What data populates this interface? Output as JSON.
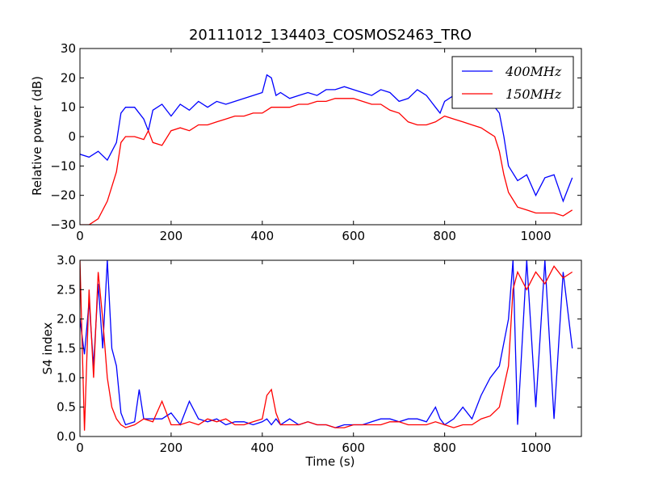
{
  "colors": {
    "series_400": "#0000ff",
    "series_150": "#ff0000"
  },
  "chart_data": [
    {
      "type": "line",
      "title": "20111012_134403_COSMOS2463_TRO",
      "xlabel": "",
      "ylabel": "Relative power (dB)",
      "xlim": [
        0,
        1100
      ],
      "ylim": [
        -30,
        30
      ],
      "xticks": [
        "0",
        "200",
        "400",
        "600",
        "800",
        "1000"
      ],
      "yticks": [
        "−30",
        "−20",
        "−10",
        "0",
        "10",
        "20",
        "30"
      ],
      "legend": {
        "position": "top-right",
        "entries": [
          "400MHz",
          "150MHz"
        ]
      },
      "series": [
        {
          "name": "400MHz",
          "color": "#0000ff",
          "x": [
            0,
            20,
            40,
            60,
            80,
            90,
            100,
            120,
            140,
            150,
            160,
            180,
            200,
            220,
            240,
            260,
            280,
            300,
            320,
            340,
            360,
            380,
            400,
            410,
            420,
            430,
            440,
            460,
            480,
            500,
            520,
            540,
            560,
            580,
            600,
            620,
            640,
            660,
            680,
            700,
            720,
            740,
            760,
            780,
            790,
            800,
            820,
            840,
            860,
            880,
            900,
            910,
            920,
            930,
            940,
            960,
            980,
            1000,
            1020,
            1040,
            1060,
            1080
          ],
          "y": [
            -6,
            -7,
            -5,
            -8,
            -2,
            8,
            10,
            10,
            6,
            2,
            9,
            11,
            7,
            11,
            9,
            12,
            10,
            12,
            11,
            12,
            13,
            14,
            15,
            21,
            20,
            14,
            15,
            13,
            14,
            15,
            14,
            16,
            16,
            17,
            16,
            15,
            14,
            16,
            15,
            12,
            13,
            16,
            14,
            10,
            8,
            12,
            14,
            13,
            12,
            13,
            13,
            10,
            8,
            0,
            -10,
            -15,
            -13,
            -20,
            -14,
            -13,
            -22,
            -14
          ]
        },
        {
          "name": "150MHz",
          "color": "#ff0000",
          "x": [
            0,
            20,
            40,
            60,
            80,
            90,
            100,
            120,
            140,
            150,
            160,
            180,
            200,
            220,
            240,
            260,
            280,
            300,
            320,
            340,
            360,
            380,
            400,
            410,
            420,
            430,
            440,
            460,
            480,
            500,
            520,
            540,
            560,
            580,
            600,
            620,
            640,
            660,
            680,
            700,
            720,
            740,
            760,
            780,
            790,
            800,
            820,
            840,
            860,
            880,
            900,
            910,
            920,
            930,
            940,
            960,
            980,
            1000,
            1020,
            1040,
            1060,
            1080
          ],
          "y": [
            -30,
            -30,
            -28,
            -22,
            -12,
            -2,
            0,
            0,
            -1,
            2,
            -2,
            -3,
            2,
            3,
            2,
            4,
            4,
            5,
            6,
            7,
            7,
            8,
            8,
            9,
            10,
            10,
            10,
            10,
            11,
            11,
            12,
            12,
            13,
            13,
            13,
            12,
            11,
            11,
            9,
            8,
            5,
            4,
            4,
            5,
            6,
            7,
            6,
            5,
            4,
            3,
            1,
            0,
            -5,
            -13,
            -19,
            -24,
            -25,
            -26,
            -26,
            -26,
            -27,
            -25
          ]
        }
      ]
    },
    {
      "type": "line",
      "title": "",
      "xlabel": "Time (s)",
      "ylabel": "S4 index",
      "xlim": [
        0,
        1100
      ],
      "ylim": [
        0,
        3
      ],
      "xticks": [
        "0",
        "200",
        "400",
        "600",
        "800",
        "1000"
      ],
      "yticks": [
        "0.0",
        "0.5",
        "1.0",
        "1.5",
        "2.0",
        "2.5",
        "3.0"
      ],
      "series": [
        {
          "name": "400MHz",
          "color": "#0000ff",
          "x": [
            0,
            10,
            20,
            30,
            40,
            50,
            60,
            70,
            80,
            90,
            100,
            120,
            130,
            140,
            160,
            180,
            200,
            220,
            240,
            260,
            280,
            300,
            320,
            340,
            360,
            380,
            400,
            410,
            420,
            430,
            440,
            460,
            480,
            500,
            520,
            540,
            560,
            580,
            600,
            620,
            640,
            660,
            680,
            700,
            720,
            740,
            760,
            780,
            790,
            800,
            820,
            840,
            860,
            880,
            900,
            920,
            940,
            950,
            960,
            980,
            1000,
            1020,
            1040,
            1060,
            1080
          ],
          "y": [
            2.0,
            1.4,
            2.3,
            1.2,
            2.6,
            1.5,
            3.0,
            1.5,
            1.2,
            0.4,
            0.2,
            0.25,
            0.8,
            0.3,
            0.3,
            0.3,
            0.4,
            0.2,
            0.6,
            0.3,
            0.25,
            0.3,
            0.2,
            0.25,
            0.25,
            0.2,
            0.25,
            0.3,
            0.2,
            0.3,
            0.2,
            0.3,
            0.2,
            0.25,
            0.2,
            0.2,
            0.15,
            0.2,
            0.2,
            0.2,
            0.25,
            0.3,
            0.3,
            0.25,
            0.3,
            0.3,
            0.25,
            0.5,
            0.3,
            0.2,
            0.3,
            0.5,
            0.3,
            0.7,
            1.0,
            1.2,
            2.0,
            3.0,
            0.2,
            3.0,
            0.5,
            3.0,
            0.3,
            2.8,
            1.5
          ]
        },
        {
          "name": "150MHz",
          "color": "#ff0000",
          "x": [
            0,
            10,
            20,
            30,
            40,
            50,
            60,
            70,
            80,
            90,
            100,
            120,
            140,
            160,
            180,
            200,
            220,
            240,
            260,
            280,
            300,
            320,
            340,
            360,
            380,
            400,
            410,
            420,
            430,
            440,
            460,
            480,
            500,
            520,
            540,
            560,
            580,
            600,
            620,
            640,
            660,
            680,
            700,
            720,
            740,
            760,
            780,
            800,
            820,
            840,
            860,
            880,
            900,
            920,
            940,
            950,
            960,
            980,
            1000,
            1020,
            1040,
            1060,
            1080
          ],
          "y": [
            3.0,
            0.1,
            2.5,
            1.0,
            2.8,
            2.0,
            1.0,
            0.5,
            0.3,
            0.2,
            0.15,
            0.2,
            0.3,
            0.25,
            0.6,
            0.2,
            0.2,
            0.25,
            0.2,
            0.3,
            0.25,
            0.3,
            0.2,
            0.2,
            0.25,
            0.3,
            0.7,
            0.8,
            0.4,
            0.2,
            0.2,
            0.2,
            0.25,
            0.2,
            0.2,
            0.15,
            0.15,
            0.2,
            0.2,
            0.2,
            0.2,
            0.25,
            0.25,
            0.2,
            0.2,
            0.2,
            0.25,
            0.2,
            0.15,
            0.2,
            0.2,
            0.3,
            0.35,
            0.5,
            1.2,
            2.5,
            2.8,
            2.5,
            2.8,
            2.6,
            2.9,
            2.7,
            2.8
          ]
        }
      ]
    }
  ]
}
